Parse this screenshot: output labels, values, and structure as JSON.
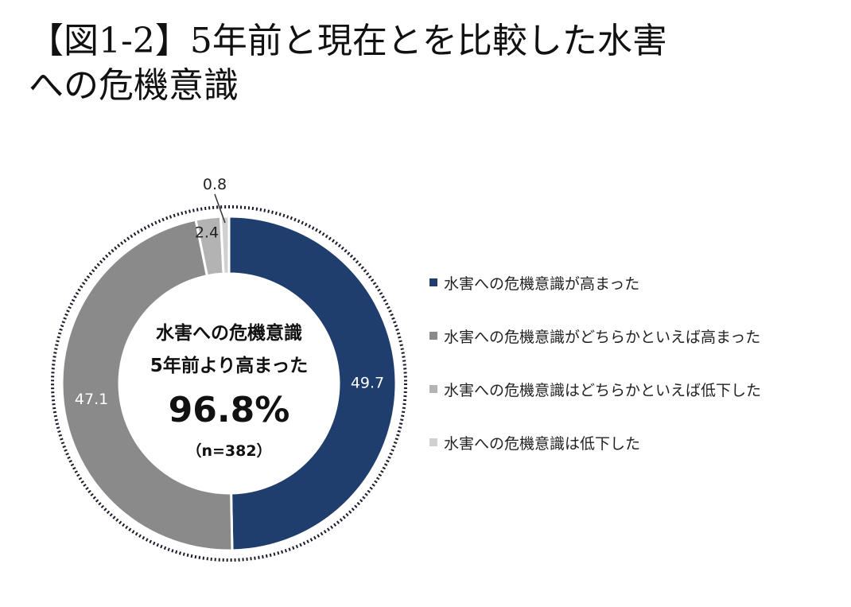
{
  "title": {
    "line1": "【図1-2】5年前と現在とを比較した水害",
    "line2": "への危機意識"
  },
  "center": {
    "line1": "水害への危機意識",
    "line2": "5年前より高まった",
    "value": "96.8%",
    "n": "（n=382）"
  },
  "chart_data": {
    "type": "pie",
    "variant": "donut",
    "categories": [
      "水害への危機意識が高まった",
      "水害への危機意識がどちらかといえば高まった",
      "水害への危機意識はどちらかといえば低下した",
      "水害への危機意識は低下した"
    ],
    "values": [
      49.7,
      47.1,
      2.4,
      0.8
    ],
    "labels": [
      "49.7",
      "47.1",
      "2.4",
      "0.8"
    ],
    "colors": [
      "#1f3d6d",
      "#8a8a8a",
      "#b3b3b3",
      "#d0d0d0"
    ],
    "legend_position": "right"
  }
}
